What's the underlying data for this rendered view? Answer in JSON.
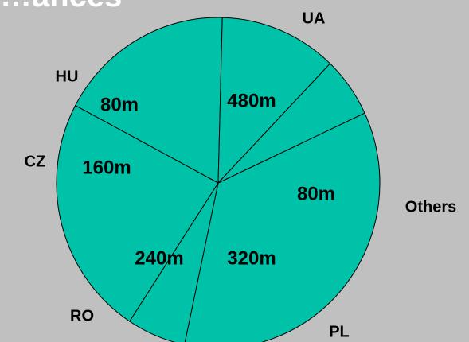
{
  "title": "…ances",
  "colors": {
    "background": "#c0c0c0",
    "slice_fill": "#00c2a8",
    "slice_stroke": "#000000",
    "text": "#000000",
    "title": "#ffffff"
  },
  "chart_data": {
    "type": "pie",
    "unit": "m",
    "slices": [
      {
        "label": "UA",
        "value": 480,
        "value_label": "480m"
      },
      {
        "label": "Others",
        "value": 80,
        "value_label": "80m"
      },
      {
        "label": "PL",
        "value": 320,
        "value_label": "320m"
      },
      {
        "label": "RO",
        "value": 240,
        "value_label": "240m"
      },
      {
        "label": "CZ",
        "value": 160,
        "value_label": "160m"
      },
      {
        "label": "HU",
        "value": 80,
        "value_label": "80m"
      }
    ],
    "legend": "none"
  }
}
